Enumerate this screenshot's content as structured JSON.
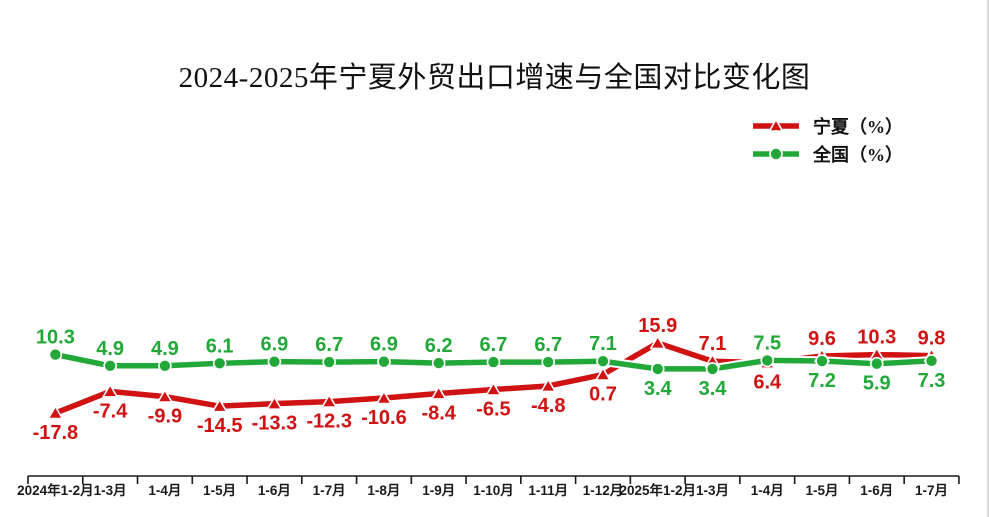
{
  "chart_data": {
    "type": "line",
    "title": "2024-2025年宁夏外贸出口增速与全国对比变化图",
    "categories": [
      "2024年1-2月",
      "1-3月",
      "1-4月",
      "1-5月",
      "1-6月",
      "1-7月",
      "1-8月",
      "1-9月",
      "1-10月",
      "1-11月",
      "1-12月",
      "2025年1-2月",
      "1-3月",
      "1-4月",
      "1-5月",
      "1-6月",
      "1-7月"
    ],
    "series": [
      {
        "name": "宁夏（%）",
        "color": "#d01212",
        "marker": "triangle",
        "values": [
          -17.8,
          -7.4,
          -9.9,
          -14.5,
          -13.3,
          -12.3,
          -10.6,
          -8.4,
          -6.5,
          -4.8,
          0.7,
          15.9,
          7.1,
          6.4,
          9.6,
          10.3,
          9.8
        ],
        "label_side": [
          "below",
          "below",
          "below",
          "below",
          "below",
          "below",
          "below",
          "below",
          "below",
          "below",
          "below",
          "above",
          "above",
          "below",
          "above",
          "above",
          "above"
        ]
      },
      {
        "name": "全国（%）",
        "color": "#22a838",
        "marker": "circle",
        "values": [
          10.3,
          4.9,
          4.9,
          6.1,
          6.9,
          6.7,
          6.9,
          6.2,
          6.7,
          6.7,
          7.1,
          3.4,
          3.4,
          7.5,
          7.2,
          5.9,
          7.3
        ],
        "label_side": [
          "above",
          "above",
          "above",
          "above",
          "above",
          "above",
          "above",
          "above",
          "above",
          "above",
          "above",
          "below",
          "below",
          "above",
          "below",
          "below",
          "below"
        ]
      }
    ],
    "ylim": [
      -20,
      18
    ],
    "grid": false,
    "y_axis_visible": false,
    "legend_position": "top-right",
    "axis_color": "#1a1a1a"
  }
}
